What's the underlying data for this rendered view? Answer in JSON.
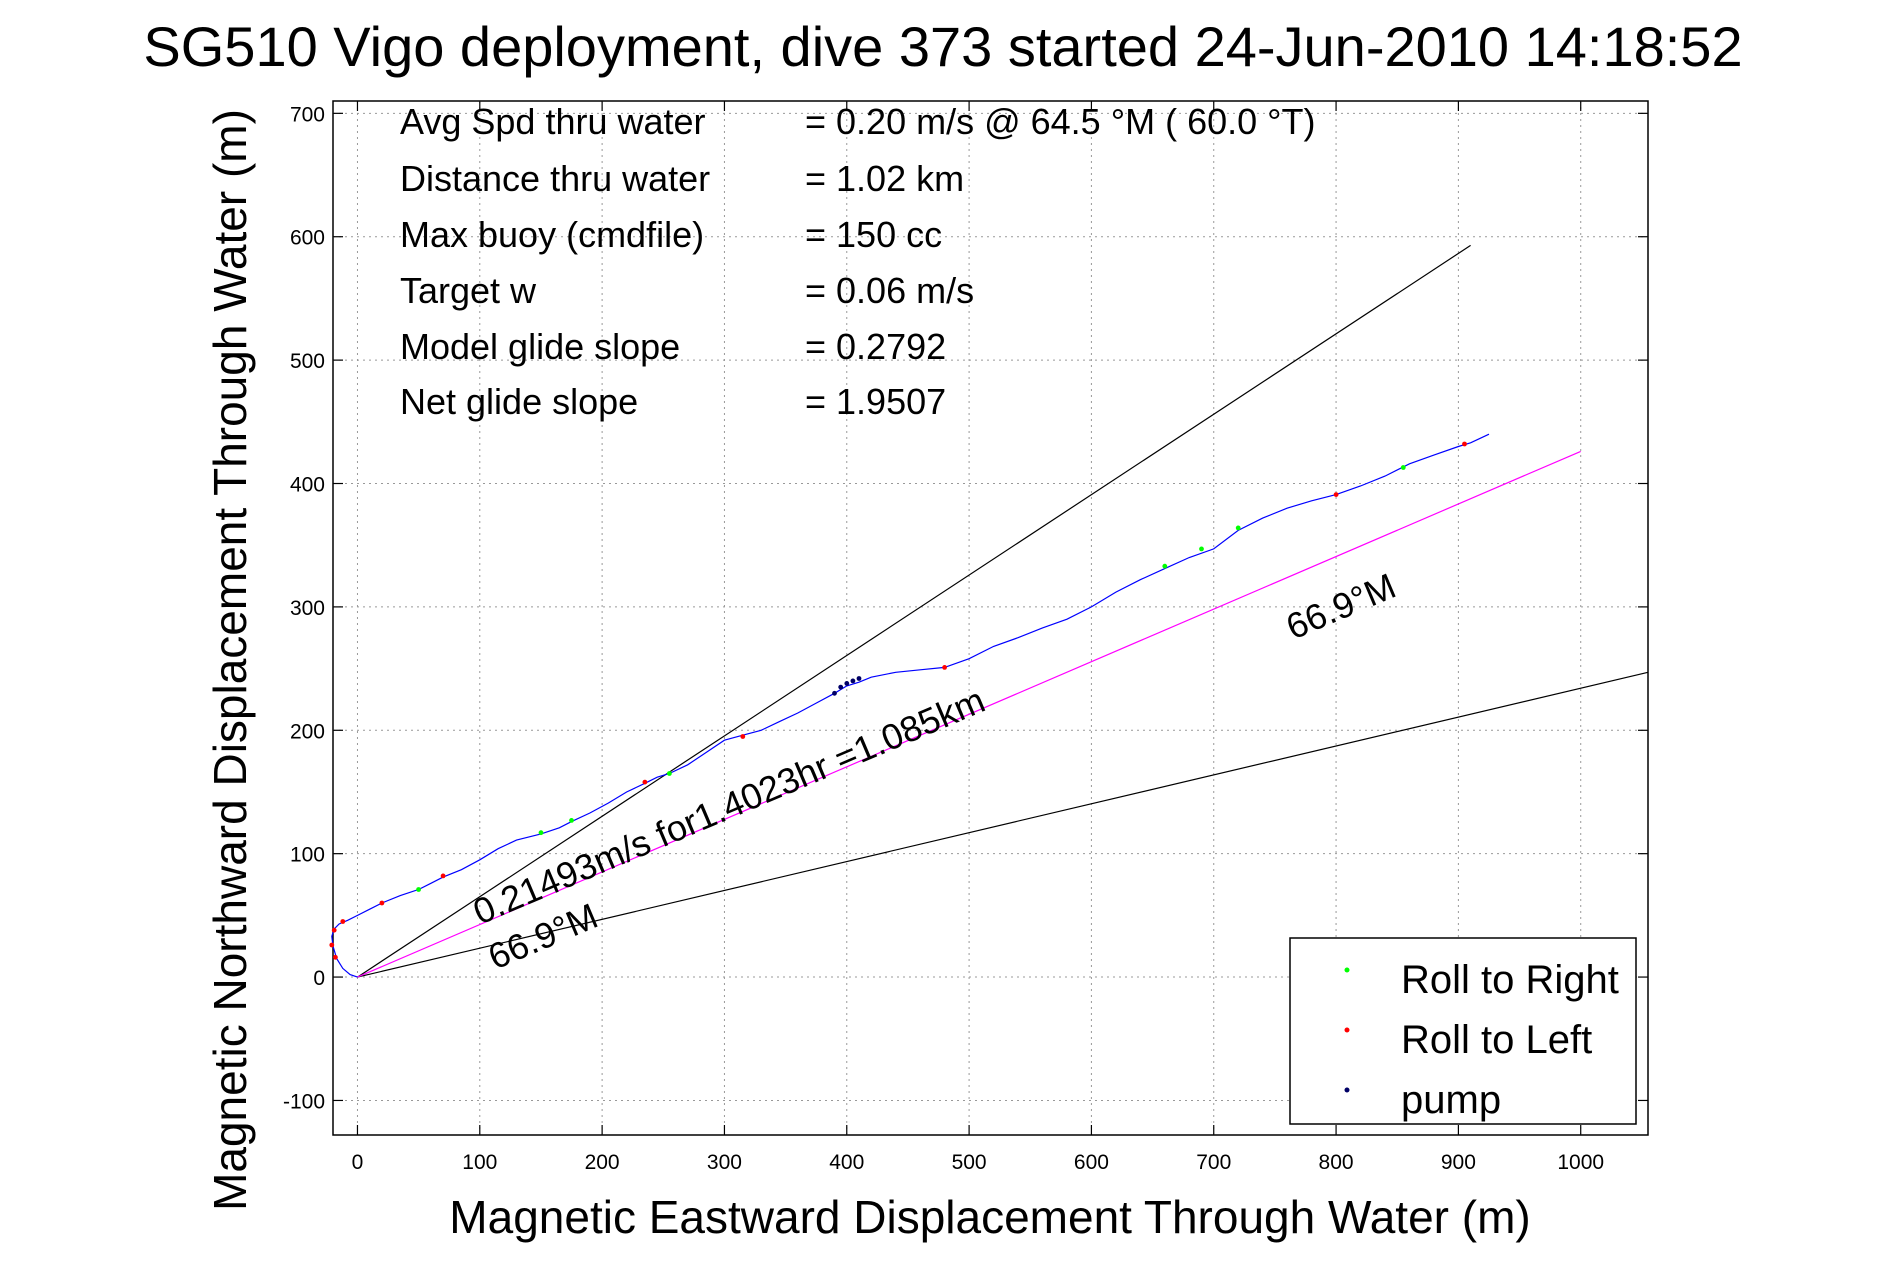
{
  "chart_data": {
    "type": "line",
    "title": "SG510 Vigo deployment, dive 373 started 24-Jun-2010 14:18:52",
    "xlabel": "Magnetic Eastward Displacement Through Water (m)",
    "ylabel": "Magnetic Northward Displacement Through Water (m)",
    "xlim": [
      -20,
      1055
    ],
    "ylim": [
      -128,
      710
    ],
    "xticks": [
      0,
      100,
      200,
      300,
      400,
      500,
      600,
      700,
      800,
      900,
      1000
    ],
    "yticks": [
      -100,
      0,
      100,
      200,
      300,
      400,
      500,
      600,
      700
    ],
    "grid": true,
    "legend_position": "bottom-right",
    "annotations": [
      {
        "key": "Avg Spd thru water",
        "value": "=  0.20 m/s @  64.5 °M ( 60.0 °T)"
      },
      {
        "key": "Distance thru water",
        "value": "=  1.02 km"
      },
      {
        "key": "Max buoy (cmdfile)",
        "value": "= 150 cc"
      },
      {
        "key": "Target w",
        "value": "= 0.06 m/s"
      },
      {
        "key": "Model glide slope",
        "value": "= 0.2792"
      },
      {
        "key": "Net glide slope",
        "value": "= 1.9507"
      }
    ],
    "line_labels": [
      {
        "text": "0.21493m/s for1.4023hr =1.085km"
      },
      {
        "text": "66.9°M"
      },
      {
        "text": "66.9°M"
      }
    ],
    "series": [
      {
        "name": "track",
        "color": "#0000ff",
        "x": [
          0,
          -6,
          -12,
          -17,
          -20,
          -21,
          -19,
          -15,
          -8,
          0,
          10,
          20,
          35,
          50,
          60,
          70,
          85,
          100,
          115,
          130,
          150,
          165,
          175,
          190,
          205,
          220,
          235,
          245,
          255,
          270,
          285,
          300,
          315,
          330,
          345,
          360,
          375,
          390,
          400,
          410,
          420,
          440,
          460,
          480,
          500,
          520,
          540,
          560,
          580,
          600,
          620,
          640,
          660,
          680,
          700,
          720,
          740,
          760,
          780,
          800,
          820,
          840,
          860,
          880,
          900,
          910,
          925
        ],
        "y": [
          0,
          2,
          7,
          15,
          25,
          33,
          39,
          43,
          46,
          50,
          55,
          60,
          66,
          71,
          76,
          81,
          87,
          95,
          104,
          111,
          116,
          121,
          126,
          133,
          141,
          150,
          157,
          162,
          165,
          172,
          182,
          192,
          196,
          200,
          207,
          214,
          222,
          230,
          236,
          239,
          243,
          247,
          249,
          251,
          258,
          268,
          275,
          283,
          290,
          300,
          312,
          322,
          331,
          340,
          347,
          362,
          372,
          380,
          386,
          391,
          398,
          406,
          416,
          423,
          430,
          433,
          440
        ]
      },
      {
        "name": "dive track",
        "color": "#ff00ff",
        "x": [
          0,
          1000
        ],
        "y": [
          0,
          426
        ]
      },
      {
        "name": "Roll to Right",
        "color": "#00ff00",
        "x": [
          50,
          150,
          175,
          255,
          660,
          690,
          720,
          855
        ],
        "y": [
          71,
          117,
          127,
          165,
          333,
          347,
          364,
          413
        ]
      },
      {
        "name": "Roll to Left",
        "color": "#ff0000",
        "x": [
          -18,
          -21,
          -19,
          -12,
          20,
          70,
          235,
          315,
          480,
          800,
          905
        ],
        "y": [
          16,
          26,
          38,
          45,
          60,
          82,
          158,
          195,
          251,
          391,
          432
        ]
      },
      {
        "name": "pump",
        "color": "#000066",
        "x": [
          390,
          395,
          400,
          405,
          410
        ],
        "y": [
          230,
          235,
          238,
          240,
          242
        ]
      },
      {
        "name": "bound upper",
        "color": "#000000",
        "x": [
          0,
          910
        ],
        "y": [
          0,
          593
        ]
      },
      {
        "name": "bound lower",
        "color": "#000000",
        "x": [
          0,
          1055
        ],
        "y": [
          0,
          247
        ]
      }
    ],
    "legend": [
      {
        "label": "Roll to Right",
        "color": "#00ff00"
      },
      {
        "label": "Roll to Left",
        "color": "#ff0000"
      },
      {
        "label": "pump",
        "color": "#000066"
      }
    ]
  }
}
